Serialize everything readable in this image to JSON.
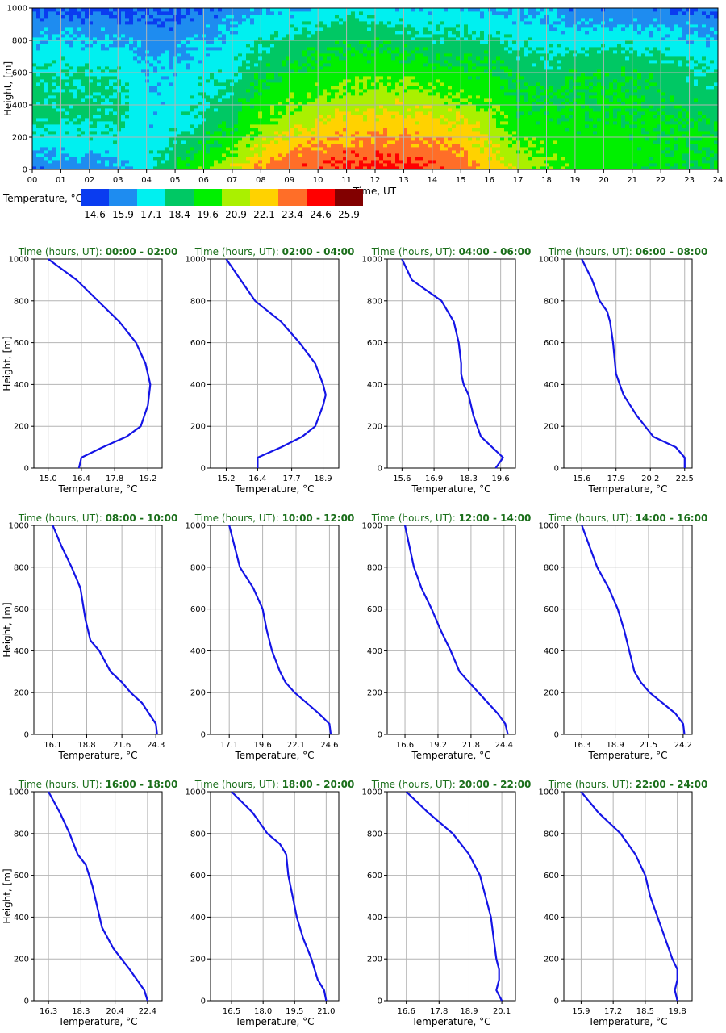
{
  "chart_data": [
    {
      "type": "heatmap",
      "xlabel": "Time, UT",
      "ylabel": "Height, [m]",
      "x_ticks": [
        "00",
        "01",
        "02",
        "03",
        "04",
        "05",
        "06",
        "07",
        "08",
        "09",
        "10",
        "11",
        "12",
        "13",
        "14",
        "15",
        "16",
        "17",
        "18",
        "19",
        "20",
        "21",
        "22",
        "23",
        "24"
      ],
      "y_ticks": [
        "0",
        "200",
        "400",
        "600",
        "800",
        "1000"
      ],
      "xlim": [
        0,
        24
      ],
      "ylim": [
        0,
        1000
      ],
      "grid": true,
      "colorbar": {
        "label": "Temperature, °C",
        "values": [
          "14.6",
          "15.9",
          "17.1",
          "18.4",
          "19.6",
          "20.9",
          "22.1",
          "23.4",
          "24.6",
          "25.9"
        ],
        "colors": [
          "#0a3cf0",
          "#1e8cf0",
          "#00f0f0",
          "#00c864",
          "#00f000",
          "#aaf000",
          "#ffd200",
          "#ff6e28",
          "#ff0000",
          "#820000"
        ]
      },
      "time_hours": [
        0,
        1,
        2,
        3,
        4,
        5,
        6,
        7,
        8,
        9,
        10,
        11,
        12,
        13,
        14,
        15,
        16,
        17,
        18,
        19,
        20,
        21,
        22,
        23,
        24
      ],
      "heights_m": [
        0,
        100,
        200,
        300,
        400,
        500,
        600,
        700,
        800,
        900,
        1000
      ],
      "temperature_c": [
        [
          15.6,
          16.5,
          17.3,
          17.8,
          18.1,
          18.0,
          17.7,
          17.2,
          16.6,
          15.8,
          15.0
        ],
        [
          15.6,
          16.6,
          17.4,
          17.9,
          18.2,
          18.1,
          17.8,
          17.3,
          16.6,
          15.8,
          15.0
        ],
        [
          15.5,
          16.5,
          17.3,
          17.9,
          18.2,
          18.1,
          17.8,
          17.2,
          16.5,
          15.7,
          14.9
        ],
        [
          16.0,
          16.9,
          17.5,
          17.8,
          18.0,
          17.9,
          17.6,
          17.1,
          16.4,
          15.7,
          14.9
        ],
        [
          17.3,
          17.1,
          16.9,
          16.9,
          16.8,
          16.7,
          16.6,
          16.3,
          15.9,
          15.4,
          14.9
        ],
        [
          18.8,
          18.3,
          17.6,
          17.1,
          17.0,
          17.0,
          16.8,
          16.4,
          16.0,
          15.5,
          15.0
        ],
        [
          20.2,
          19.2,
          18.5,
          18.0,
          17.7,
          17.5,
          17.2,
          16.8,
          16.4,
          15.9,
          15.3
        ],
        [
          21.5,
          20.3,
          19.3,
          18.8,
          18.4,
          18.0,
          17.6,
          17.2,
          16.8,
          16.3,
          15.7
        ],
        [
          23.0,
          21.8,
          20.8,
          20.1,
          19.6,
          19.1,
          18.6,
          18.1,
          17.6,
          17.0,
          16.3
        ],
        [
          23.6,
          22.6,
          21.6,
          20.8,
          20.1,
          19.6,
          19.1,
          18.6,
          18.0,
          17.3,
          16.6
        ],
        [
          24.0,
          23.2,
          22.3,
          21.4,
          20.6,
          20.0,
          19.4,
          18.9,
          18.3,
          17.6,
          16.9
        ],
        [
          24.4,
          23.6,
          22.7,
          21.8,
          21.0,
          20.4,
          19.8,
          19.3,
          18.8,
          18.2,
          17.4
        ],
        [
          24.3,
          23.6,
          22.7,
          21.9,
          21.1,
          20.4,
          19.9,
          19.3,
          18.7,
          17.8,
          16.8
        ],
        [
          24.1,
          23.6,
          22.9,
          22.0,
          21.2,
          20.5,
          19.8,
          19.1,
          18.3,
          17.5,
          16.7
        ],
        [
          24.0,
          23.4,
          22.6,
          21.8,
          21.0,
          20.2,
          19.5,
          18.9,
          18.2,
          17.4,
          16.6
        ],
        [
          23.4,
          22.9,
          22.1,
          21.4,
          20.6,
          19.9,
          19.3,
          18.7,
          18.0,
          17.3,
          16.5
        ],
        [
          22.2,
          21.6,
          21.1,
          20.6,
          20.1,
          19.6,
          19.1,
          18.6,
          17.9,
          17.2,
          16.4
        ],
        [
          21.0,
          20.5,
          20.1,
          19.6,
          19.2,
          18.9,
          18.6,
          18.1,
          17.6,
          16.9,
          16.3
        ],
        [
          20.4,
          20.1,
          19.7,
          19.3,
          19.0,
          18.7,
          18.3,
          17.8,
          17.2,
          16.6,
          16.0
        ],
        [
          19.7,
          19.7,
          19.5,
          19.3,
          19.1,
          18.9,
          18.6,
          18.0,
          17.2,
          16.3,
          15.5
        ],
        [
          19.5,
          19.6,
          19.5,
          19.3,
          19.2,
          19.0,
          18.7,
          18.2,
          17.3,
          16.3,
          15.5
        ],
        [
          19.3,
          19.5,
          19.4,
          19.3,
          19.1,
          19.0,
          18.7,
          18.2,
          17.3,
          16.3,
          15.5
        ],
        [
          19.1,
          19.3,
          19.2,
          19.0,
          18.8,
          18.6,
          18.3,
          17.8,
          17.0,
          16.2,
          15.4
        ],
        [
          18.9,
          19.1,
          19.0,
          18.8,
          18.5,
          18.3,
          18.0,
          17.5,
          16.8,
          16.1,
          15.3
        ],
        [
          18.8,
          19.0,
          18.9,
          18.7,
          18.4,
          18.2,
          17.9,
          17.4,
          16.7,
          16.0,
          15.2
        ]
      ]
    },
    {
      "type": "line",
      "title_prefix": "Time (hours, UT):",
      "title_range": "00:00 - 02:00",
      "xlabel": "Temperature, °C",
      "ylabel": "Height, [m]",
      "xlim": [
        14.4,
        19.8
      ],
      "ylim": [
        0,
        1000
      ],
      "x_ticks": [
        15.0,
        16.4,
        17.8,
        19.2
      ],
      "temperature": [
        16.3,
        16.4,
        17.3,
        18.3,
        18.9,
        19.2,
        19.3,
        19.1,
        18.7,
        18.0,
        17.1,
        16.2,
        15.0
      ],
      "height": [
        0,
        50,
        100,
        150,
        200,
        300,
        400,
        500,
        600,
        700,
        800,
        900,
        1000
      ]
    },
    {
      "type": "line",
      "title_prefix": "Time (hours, UT):",
      "title_range": "02:00 - 04:00",
      "xlabel": "Temperature, °C",
      "ylabel": "",
      "xlim": [
        14.6,
        19.5
      ],
      "ylim": [
        0,
        1000
      ],
      "x_ticks": [
        15.2,
        16.4,
        17.7,
        18.9
      ],
      "temperature": [
        16.4,
        16.4,
        17.3,
        18.1,
        18.6,
        18.9,
        19.0,
        18.9,
        18.6,
        18.0,
        17.3,
        16.3,
        15.2
      ],
      "height": [
        0,
        50,
        100,
        150,
        200,
        300,
        350,
        400,
        500,
        600,
        700,
        800,
        1000
      ]
    },
    {
      "type": "line",
      "title_prefix": "Time (hours, UT):",
      "title_range": "04:00 - 06:00",
      "xlabel": "Temperature, °C",
      "ylabel": "",
      "xlim": [
        15.0,
        20.2
      ],
      "ylim": [
        0,
        1000
      ],
      "x_ticks": [
        15.6,
        16.9,
        18.3,
        19.6
      ],
      "temperature": [
        19.4,
        19.7,
        18.8,
        18.5,
        18.3,
        18.1,
        18.0,
        18.0,
        17.9,
        17.7,
        17.2,
        16.6,
        16.0,
        15.6
      ],
      "height": [
        0,
        50,
        150,
        250,
        350,
        400,
        450,
        500,
        600,
        700,
        800,
        850,
        900,
        1000
      ]
    },
    {
      "type": "line",
      "title_prefix": "Time (hours, UT):",
      "title_range": "06:00 - 08:00",
      "xlabel": "Temperature, °C",
      "ylabel": "",
      "xlim": [
        14.4,
        23.0
      ],
      "ylim": [
        0,
        1000
      ],
      "x_ticks": [
        15.6,
        17.9,
        20.2,
        22.5
      ],
      "temperature": [
        22.5,
        22.5,
        21.9,
        20.4,
        19.3,
        18.4,
        17.9,
        17.7,
        17.5,
        17.3,
        16.8,
        16.3,
        15.6
      ],
      "height": [
        0,
        50,
        100,
        150,
        250,
        350,
        450,
        600,
        700,
        750,
        800,
        900,
        1000
      ]
    },
    {
      "type": "line",
      "title_prefix": "Time (hours, UT):",
      "title_range": "08:00 - 10:00",
      "xlabel": "Temperature, °C",
      "ylabel": "Height, [m]",
      "xlim": [
        14.6,
        24.8
      ],
      "ylim": [
        0,
        1000
      ],
      "x_ticks": [
        16.1,
        18.8,
        21.6,
        24.3
      ],
      "temperature": [
        24.4,
        24.3,
        23.2,
        22.3,
        21.6,
        20.7,
        19.8,
        19.1,
        18.7,
        18.3,
        17.6,
        16.8,
        16.1
      ],
      "height": [
        0,
        50,
        150,
        200,
        250,
        300,
        400,
        450,
        550,
        700,
        800,
        900,
        1000
      ]
    },
    {
      "type": "line",
      "title_prefix": "Time (hours, UT):",
      "title_range": "10:00 - 12:00",
      "xlabel": "Temperature, °C",
      "ylabel": "",
      "xlim": [
        15.7,
        25.3
      ],
      "ylim": [
        0,
        1000
      ],
      "x_ticks": [
        17.1,
        19.6,
        22.1,
        24.6
      ],
      "temperature": [
        24.7,
        24.6,
        23.8,
        22.9,
        22.0,
        21.3,
        20.9,
        20.3,
        19.9,
        19.6,
        18.9,
        17.9,
        17.1
      ],
      "height": [
        0,
        50,
        100,
        150,
        200,
        250,
        300,
        400,
        500,
        600,
        700,
        800,
        1000
      ]
    },
    {
      "type": "line",
      "title_prefix": "Time (hours, UT):",
      "title_range": "12:00 - 14:00",
      "xlabel": "Temperature, °C",
      "ylabel": "",
      "xlim": [
        15.2,
        25.3
      ],
      "ylim": [
        0,
        1000
      ],
      "x_ticks": [
        16.6,
        19.2,
        21.8,
        24.4
      ],
      "temperature": [
        24.7,
        24.5,
        23.9,
        22.4,
        20.9,
        20.2,
        19.4,
        18.7,
        17.9,
        17.3,
        16.6
      ],
      "height": [
        0,
        50,
        100,
        200,
        300,
        400,
        500,
        600,
        700,
        800,
        1000
      ]
    },
    {
      "type": "line",
      "title_prefix": "Time (hours, UT):",
      "title_range": "14:00 - 16:00",
      "xlabel": "Temperature, °C",
      "ylabel": "",
      "xlim": [
        14.9,
        24.9
      ],
      "ylim": [
        0,
        1000
      ],
      "x_ticks": [
        16.3,
        18.9,
        21.5,
        24.2
      ],
      "temperature": [
        24.3,
        24.2,
        23.6,
        22.6,
        21.6,
        20.9,
        20.4,
        20.0,
        19.6,
        19.1,
        18.4,
        17.5,
        16.3
      ],
      "height": [
        0,
        50,
        100,
        150,
        200,
        250,
        300,
        400,
        500,
        600,
        700,
        800,
        1000
      ]
    },
    {
      "type": "line",
      "title_prefix": "Time (hours, UT):",
      "title_range": "16:00 - 18:00",
      "xlabel": "Temperature, °C",
      "ylabel": "Height, [m]",
      "xlim": [
        15.4,
        23.3
      ],
      "ylim": [
        0,
        1000
      ],
      "x_ticks": [
        16.3,
        18.3,
        20.4,
        22.4
      ],
      "temperature": [
        22.4,
        22.2,
        21.3,
        20.3,
        19.6,
        19.3,
        19.0,
        18.6,
        18.1,
        17.6,
        17.0,
        16.3
      ],
      "height": [
        0,
        50,
        150,
        250,
        350,
        450,
        550,
        650,
        700,
        800,
        900,
        1000
      ]
    },
    {
      "type": "line",
      "title_prefix": "Time (hours, UT):",
      "title_range": "18:00 - 20:00",
      "xlabel": "Temperature, °C",
      "ylabel": "",
      "xlim": [
        15.5,
        21.6
      ],
      "ylim": [
        0,
        1000
      ],
      "x_ticks": [
        16.5,
        18.0,
        19.5,
        21.0
      ],
      "temperature": [
        21.0,
        20.9,
        20.6,
        20.3,
        19.9,
        19.6,
        19.4,
        19.2,
        19.1,
        18.8,
        18.2,
        17.5,
        16.5
      ],
      "height": [
        0,
        50,
        100,
        200,
        300,
        400,
        500,
        600,
        700,
        750,
        800,
        900,
        1000
      ]
    },
    {
      "type": "line",
      "title_prefix": "Time (hours, UT):",
      "title_range": "20:00 - 22:00",
      "xlabel": "Temperature, °C",
      "ylabel": "",
      "xlim": [
        15.9,
        20.6
      ],
      "ylim": [
        0,
        1000
      ],
      "x_ticks": [
        16.6,
        17.8,
        18.9,
        20.1
      ],
      "temperature": [
        20.1,
        19.9,
        20.0,
        20.0,
        19.9,
        19.8,
        19.7,
        19.6,
        19.5,
        19.3,
        18.9,
        18.3,
        17.4,
        16.6
      ],
      "height": [
        0,
        50,
        100,
        150,
        200,
        300,
        400,
        450,
        500,
        600,
        700,
        800,
        900,
        1000
      ]
    },
    {
      "type": "line",
      "title_prefix": "Time (hours, UT):",
      "title_range": "22:00 - 24:00",
      "xlabel": "Temperature, °C",
      "ylabel": "",
      "xlim": [
        15.2,
        20.4
      ],
      "ylim": [
        0,
        1000
      ],
      "x_ticks": [
        15.9,
        17.2,
        18.5,
        19.8
      ],
      "temperature": [
        19.8,
        19.7,
        19.8,
        19.8,
        19.6,
        19.3,
        19.0,
        18.7,
        18.5,
        18.1,
        17.5,
        16.6,
        15.9
      ],
      "height": [
        0,
        50,
        100,
        150,
        200,
        300,
        400,
        500,
        600,
        700,
        800,
        900,
        1000
      ]
    }
  ]
}
